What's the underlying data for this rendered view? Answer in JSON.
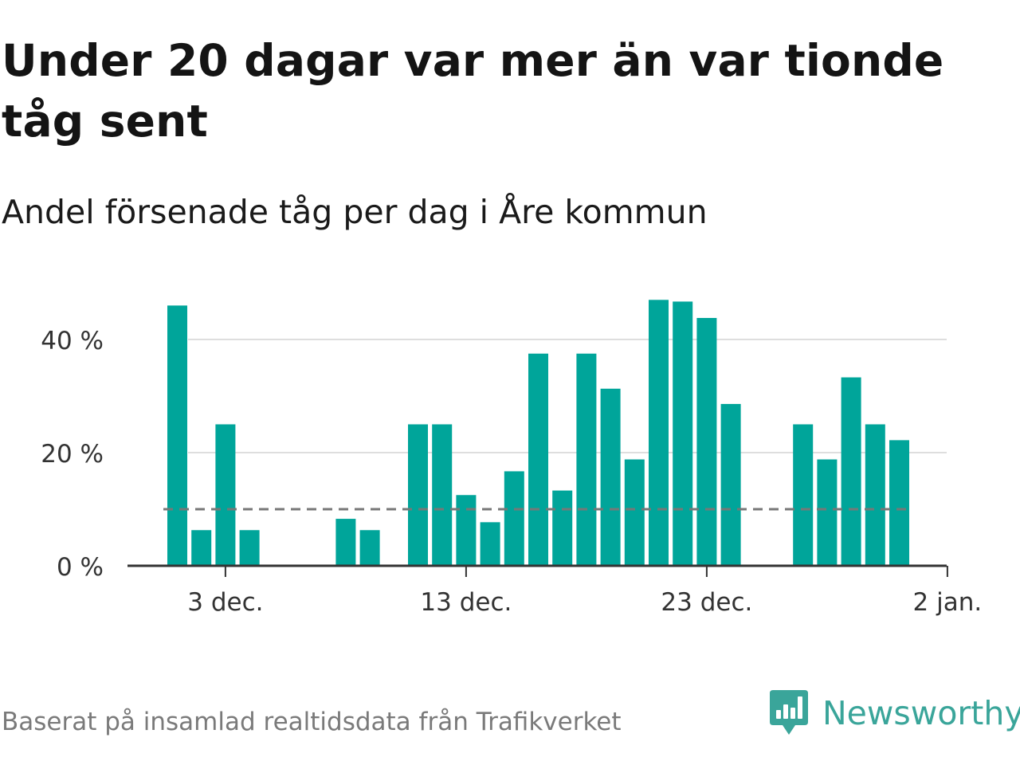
{
  "header": {
    "title": "Under 20 dagar var mer än var tionde tåg sent",
    "subtitle": "Andel försenade tåg per dag i Åre kommun"
  },
  "footer": {
    "source": "Baserat på insamlad realtidsdata från Trafikverket",
    "brand_name": "Newsworthy",
    "brand_icon": "newsworthy-logo-icon"
  },
  "colors": {
    "bar": "#00a59a",
    "reference_line": "#777777",
    "grid": "#dedede",
    "axis": "#333333",
    "tick_label": "#333333",
    "brand": "#3aa59a"
  },
  "chart_data": {
    "type": "bar",
    "x_axis": "date",
    "categories": [
      "1 dec.",
      "2 dec.",
      "3 dec.",
      "4 dec.",
      "5 dec.",
      "6 dec.",
      "7 dec.",
      "8 dec.",
      "9 dec.",
      "10 dec.",
      "11 dec.",
      "12 dec.",
      "13 dec.",
      "14 dec.",
      "15 dec.",
      "16 dec.",
      "17 dec.",
      "18 dec.",
      "19 dec.",
      "20 dec.",
      "21 dec.",
      "22 dec.",
      "23 dec.",
      "24 dec.",
      "25 dec.",
      "26 dec.",
      "27 dec.",
      "28 dec.",
      "29 dec.",
      "30 dec.",
      "31 dec."
    ],
    "values": [
      46,
      6.3,
      25,
      6.3,
      null,
      null,
      null,
      8.3,
      6.3,
      null,
      25,
      25,
      12.5,
      7.7,
      16.7,
      37.5,
      13.3,
      37.5,
      31.3,
      18.8,
      47,
      46.7,
      43.8,
      28.6,
      null,
      null,
      25,
      18.8,
      33.3,
      25,
      22.2
    ],
    "reference_line": 10,
    "x_ticks": [
      "3 dec.",
      "13 dec.",
      "23 dec.",
      "2 jan."
    ],
    "y_ticks": [
      "0 %",
      "20 %",
      "40 %"
    ],
    "y_tick_values": [
      0,
      20,
      40
    ],
    "ylim": [
      0,
      50
    ],
    "grid": true,
    "title": "Under 20 dagar var mer än var tionde tåg sent",
    "subtitle": "Andel försenade tåg per dag i Åre kommun",
    "xlabel": "",
    "ylabel": ""
  }
}
